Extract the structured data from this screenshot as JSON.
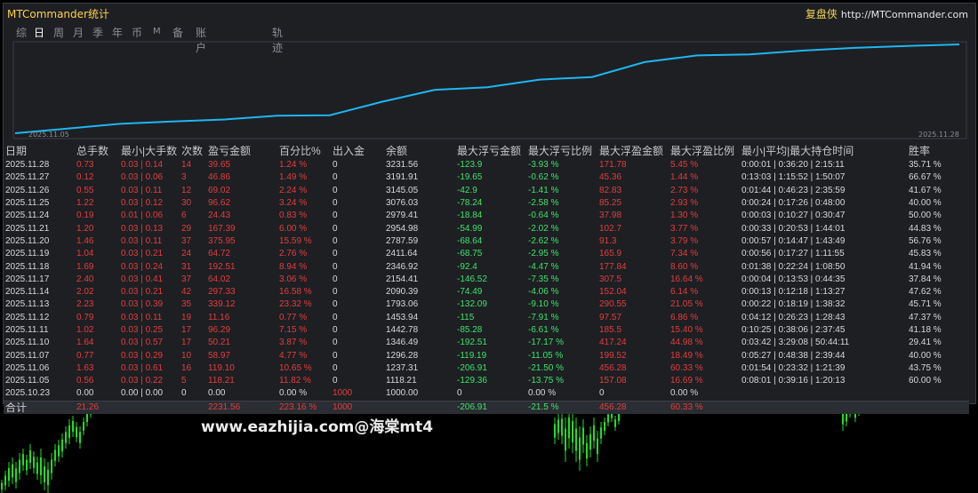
{
  "title": "MTCommander统计",
  "brand": {
    "cn": "复盘侠",
    "url": "http://MTCommander.com"
  },
  "tabs": [
    "综",
    "日",
    "周",
    "月",
    "季",
    "年",
    "币",
    "M",
    "备",
    "账户",
    "轨迹"
  ],
  "active_tab": "日",
  "chart": {
    "start_label": "2025.11.05",
    "end_label": "2025.11.28",
    "line_color": "#1fb6f2"
  },
  "columns": [
    "日期",
    "总手数",
    "最小|大手数",
    "次数",
    "盈亏金额",
    "百分比%",
    "出入金",
    "余额",
    "最大浮亏金额",
    "最大浮亏比例",
    "最大浮盈金额",
    "最大浮盈比例",
    "最小|平均|最大持仓时间",
    "胜率"
  ],
  "rows": [
    [
      "2025.11.28",
      "0.73",
      "0.03 | 0.14",
      "14",
      "39.65",
      "1.24 %",
      "0",
      "3231.56",
      "-123.9",
      "-3.93 %",
      "171.78",
      "5.45 %",
      "0:00:01 | 0:36:20 | 2:15:11",
      "35.71 %"
    ],
    [
      "2025.11.27",
      "0.12",
      "0.03 | 0.06",
      "3",
      "46.86",
      "1.49 %",
      "0",
      "3191.91",
      "-19.65",
      "-0.62 %",
      "45.36",
      "1.44 %",
      "0:13:03 | 1:15:52 | 1:50:07",
      "66.67 %"
    ],
    [
      "2025.11.26",
      "0.55",
      "0.03 | 0.11",
      "12",
      "69.02",
      "2.24 %",
      "0",
      "3145.05",
      "-42.9",
      "-1.41 %",
      "82.83",
      "2.73 %",
      "0:01:44 | 0:46:23 | 2:35:59",
      "41.67 %"
    ],
    [
      "2025.11.25",
      "1.22",
      "0.03 | 0.12",
      "30",
      "96.62",
      "3.24 %",
      "0",
      "3076.03",
      "-78.24",
      "-2.58 %",
      "85.25",
      "2.93 %",
      "0:00:24 | 0:17:26 | 0:48:00",
      "40.00 %"
    ],
    [
      "2025.11.24",
      "0.19",
      "0.01 | 0.06",
      "6",
      "24.43",
      "0.83 %",
      "0",
      "2979.41",
      "-18.84",
      "-0.64 %",
      "37.98",
      "1.30 %",
      "0:00:03 | 0:10:27 | 0:30:47",
      "50.00 %"
    ],
    [
      "2025.11.21",
      "1.20",
      "0.03 | 0.13",
      "29",
      "167.39",
      "6.00 %",
      "0",
      "2954.98",
      "-54.99",
      "-2.02 %",
      "102.7",
      "3.77 %",
      "0:00:33 | 0:20:53 | 1:44:01",
      "44.83 %"
    ],
    [
      "2025.11.20",
      "1.46",
      "0.03 | 0.11",
      "37",
      "375.95",
      "15.59 %",
      "0",
      "2787.59",
      "-68.64",
      "-2.62 %",
      "91.3",
      "3.79 %",
      "0:00:57 | 0:14:47 | 1:43:49",
      "56.76 %"
    ],
    [
      "2025.11.19",
      "1.04",
      "0.03 | 0.21",
      "24",
      "64.72",
      "2.76 %",
      "0",
      "2411.64",
      "-68.75",
      "-2.95 %",
      "165.9",
      "7.34 %",
      "0:00:56 | 0:17:27 | 1:11:55",
      "45.83 %"
    ],
    [
      "2025.11.18",
      "1.69",
      "0.03 | 0.24",
      "31",
      "192.51",
      "8.94 %",
      "0",
      "2346.92",
      "-92.4",
      "-4.47 %",
      "177.84",
      "8.60 %",
      "0:01:38 | 0:22:24 | 1:08:50",
      "41.94 %"
    ],
    [
      "2025.11.17",
      "2.40",
      "0.03 | 0.41",
      "37",
      "64.02",
      "3.06 %",
      "0",
      "2154.41",
      "-146.52",
      "-7.35 %",
      "307.5",
      "16.64 %",
      "0:00:04 | 0:13:53 | 0:44:35",
      "37.84 %"
    ],
    [
      "2025.11.14",
      "2.02",
      "0.03 | 0.21",
      "42",
      "297.33",
      "16.58 %",
      "0",
      "2090.39",
      "-74.49",
      "-4.06 %",
      "152.04",
      "6.14 %",
      "0:00:13 | 0:12:18 | 1:13:27",
      "47.62 %"
    ],
    [
      "2025.11.13",
      "2.23",
      "0.03 | 0.39",
      "35",
      "339.12",
      "23.32 %",
      "0",
      "1793.06",
      "-132.09",
      "-9.10 %",
      "290.55",
      "21.05 %",
      "0:00:22 | 0:18:19 | 1:38:32",
      "45.71 %"
    ],
    [
      "2025.11.12",
      "0.79",
      "0.03 | 0.11",
      "19",
      "11.16",
      "0.77 %",
      "0",
      "1453.94",
      "-115",
      "-7.91 %",
      "97.57",
      "6.86 %",
      "0:04:12 | 0:26:23 | 1:28:43",
      "47.37 %"
    ],
    [
      "2025.11.11",
      "1.02",
      "0.03 | 0.25",
      "17",
      "96.29",
      "7.15 %",
      "0",
      "1442.78",
      "-85.28",
      "-6.61 %",
      "185.5",
      "15.40 %",
      "0:10:25 | 0:38:06 | 2:37:45",
      "41.18 %"
    ],
    [
      "2025.11.10",
      "1.64",
      "0.03 | 0.57",
      "17",
      "50.21",
      "3.87 %",
      "0",
      "1346.49",
      "-192.51",
      "-17.17 %",
      "417.24",
      "44.98 %",
      "0:03:42 | 3:29:08 | 50:44:11",
      "29.41 %"
    ],
    [
      "2025.11.07",
      "0.77",
      "0.03 | 0.29",
      "10",
      "58.97",
      "4.77 %",
      "0",
      "1296.28",
      "-119.19",
      "-11.05 %",
      "199.52",
      "18.49 %",
      "0:05:27 | 0:48:38 | 2:39:44",
      "40.00 %"
    ],
    [
      "2025.11.06",
      "1.63",
      "0.03 | 0.61",
      "16",
      "119.10",
      "10.65 %",
      "0",
      "1237.31",
      "-206.91",
      "-21.50 %",
      "456.28",
      "60.33 %",
      "0:01:54 | 0:23:32 | 1:21:39",
      "43.75 %"
    ],
    [
      "2025.11.05",
      "0.56",
      "0.03 | 0.22",
      "5",
      "118.21",
      "11.82 %",
      "0",
      "1118.21",
      "-129.36",
      "-13.75 %",
      "157.08",
      "16.69 %",
      "0:08:01 | 0:39:16 | 1:20:13",
      "60.00 %"
    ],
    [
      "2025.10.23",
      "0.00",
      "0.00 | 0.00",
      "0",
      "0.00",
      "0.00 %",
      "1000",
      "1000.00",
      "0",
      "0.00 %",
      "0",
      "0.00 %",
      "",
      ""
    ]
  ],
  "total": [
    "合计",
    "21.26",
    "",
    "",
    "2231.56",
    "223.16 %",
    "1000",
    "",
    "-206.91",
    "-21.5 %",
    "456.28",
    "60.33 %",
    "",
    ""
  ],
  "watermark": "www.eazhijia.com@海棠mt4"
}
